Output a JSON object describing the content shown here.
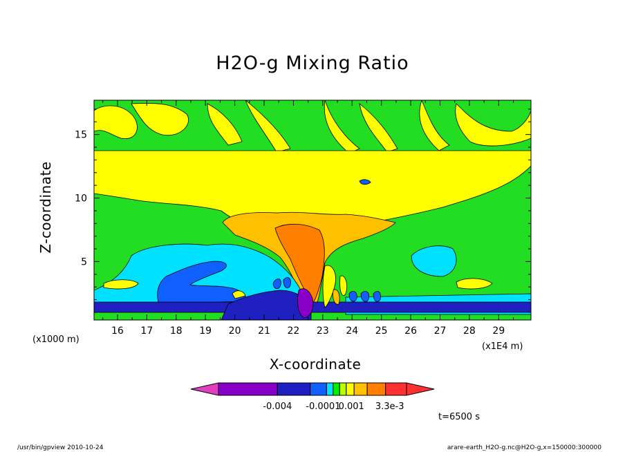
{
  "chart_data": {
    "type": "heatmap",
    "title": "H2O-g Mixing Ratio",
    "xlabel": "X-coordinate",
    "ylabel": "Z-coordinate",
    "x_unit": "(x1E4 m)",
    "y_unit": "(x1000 m)",
    "xlim": [
      15.2,
      30.1
    ],
    "ylim": [
      0.4,
      17.7
    ],
    "xticks": [
      "16",
      "17",
      "18",
      "19",
      "20",
      "21",
      "22",
      "23",
      "24",
      "25",
      "26",
      "27",
      "28",
      "29"
    ],
    "yticks": [
      "5",
      "10",
      "15"
    ],
    "colorbar": {
      "labels": [
        "-0.004",
        "-0.0001",
        "0.001",
        "3.3e-3"
      ],
      "colors": [
        "#e040c0",
        "#8800c8",
        "#2020c0",
        "#1060ff",
        "#00e0ff",
        "#00ee00",
        "#b8ff00",
        "#ffff00",
        "#ffc000",
        "#ff8000",
        "#ff3030"
      ]
    },
    "regions": {
      "background": "#22dd22",
      "upper_band": "#ffff00",
      "cloud_top": "#ffc000",
      "core": "#ff8000",
      "negative_weak": "#00e0ff",
      "negative_strong": "#1060ff",
      "negative_stronger": "#2020c0",
      "minimum": "#8800c8"
    }
  },
  "annotations": {
    "time": "t=6500 s",
    "footer_left": "/usr/bin/gpview  2010-10-24",
    "footer_right": "arare-earth_H2O-g.nc@H2O-g,x=150000:300000"
  }
}
